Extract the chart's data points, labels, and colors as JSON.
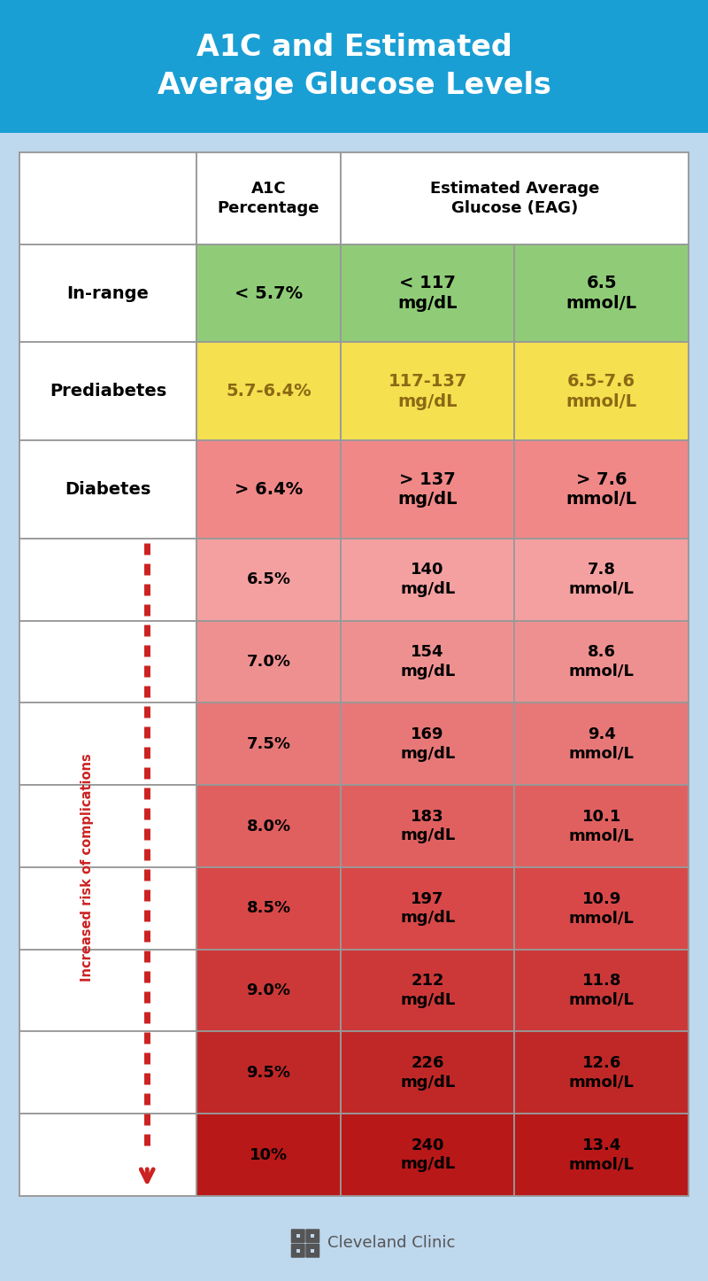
{
  "title": "A1C and Estimated\nAverage Glucose Levels",
  "title_bg": "#1a9fd4",
  "title_color": "#ffffff",
  "bg_color": "#bed8ee",
  "table_bg": "#ffffff",
  "header_row_bg": "#ffffff",
  "rows": [
    {
      "label": "In-range",
      "a1c": "< 5.7%",
      "mgdl": "< 117\nmg/dL",
      "mmol": "6.5\nmmol/L",
      "color": "#90cc78",
      "text_color": "#000000"
    },
    {
      "label": "Prediabetes",
      "a1c": "5.7-6.4%",
      "mgdl": "117-137\nmg/dL",
      "mmol": "6.5-7.6\nmmol/L",
      "color": "#f5e050",
      "text_color": "#8B6914"
    },
    {
      "label": "Diabetes",
      "a1c": "> 6.4%",
      "mgdl": "> 137\nmg/dL",
      "mmol": "> 7.6\nmmol/L",
      "color": "#f08888",
      "text_color": "#000000"
    }
  ],
  "detail_rows": [
    {
      "a1c": "6.5%",
      "mgdl": "140\nmg/dL",
      "mmol": "7.8\nmmol/L",
      "color": "#f4a0a0"
    },
    {
      "a1c": "7.0%",
      "mgdl": "154\nmg/dL",
      "mmol": "8.6\nmmol/L",
      "color": "#ef9090"
    },
    {
      "a1c": "7.5%",
      "mgdl": "169\nmg/dL",
      "mmol": "9.4\nmmol/L",
      "color": "#e87878"
    },
    {
      "a1c": "8.0%",
      "mgdl": "183\nmg/dL",
      "mmol": "10.1\nmmol/L",
      "color": "#e06060"
    },
    {
      "a1c": "8.5%",
      "mgdl": "197\nmg/dL",
      "mmol": "10.9\nmmol/L",
      "color": "#d84848"
    },
    {
      "a1c": "9.0%",
      "mgdl": "212\nmg/dL",
      "mmol": "11.8\nmmol/L",
      "color": "#cc3838"
    },
    {
      "a1c": "9.5%",
      "mgdl": "226\nmg/dL",
      "mmol": "12.6\nmmol/L",
      "color": "#c02828"
    },
    {
      "a1c": "10%",
      "mgdl": "240\nmg/dL",
      "mmol": "13.4\nmmol/L",
      "color": "#b81818"
    }
  ],
  "arrow_label": "Increased risk of complications",
  "arrow_color": "#cc2222",
  "border_color": "#999999",
  "cell_text_color": "#000000",
  "footer_text": "Cleveland Clinic",
  "footer_text_color": "#555555"
}
